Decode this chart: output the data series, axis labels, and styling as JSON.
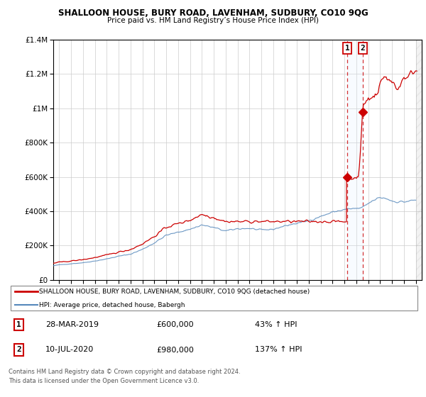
{
  "title": "SHALLOON HOUSE, BURY ROAD, LAVENHAM, SUDBURY, CO10 9QG",
  "subtitle": "Price paid vs. HM Land Registry’s House Price Index (HPI)",
  "legend_line1": "SHALLOON HOUSE, BURY ROAD, LAVENHAM, SUDBURY, CO10 9QG (detached house)",
  "legend_line2": "HPI: Average price, detached house, Babergh",
  "footer_line1": "Contains HM Land Registry data © Crown copyright and database right 2024.",
  "footer_line2": "This data is licensed under the Open Government Licence v3.0.",
  "transaction1_date": "28-MAR-2019",
  "transaction1_price": "£600,000",
  "transaction1_hpi": "43% ↑ HPI",
  "transaction2_date": "10-JUL-2020",
  "transaction2_price": "£980,000",
  "transaction2_hpi": "137% ↑ HPI",
  "sale1_year": 2019.23,
  "sale1_price": 600000,
  "sale2_year": 2020.54,
  "sale2_price": 980000,
  "red_color": "#cc0000",
  "blue_color": "#5588bb",
  "shade_color": "#ddeeff",
  "hatch_color": "#cccccc",
  "ylim_max": 1400000,
  "ylim_min": 0,
  "xlim_min": 1994.5,
  "xlim_max": 2025.5,
  "hatch_start": 2025.0,
  "hatch_end": 2025.5
}
